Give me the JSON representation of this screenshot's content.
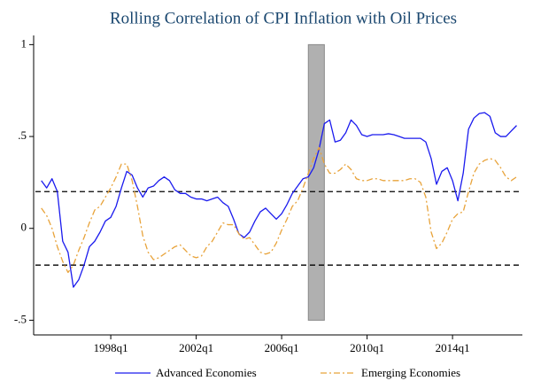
{
  "chart_data": {
    "type": "line",
    "title": "Rolling Correlation of CPI Inflation with Oil Prices",
    "x": [
      1994.75,
      1995,
      1995.25,
      1995.5,
      1995.75,
      1996,
      1996.25,
      1996.5,
      1996.75,
      1997,
      1997.25,
      1997.5,
      1997.75,
      1998,
      1998.25,
      1998.5,
      1998.75,
      1999,
      1999.25,
      1999.5,
      1999.75,
      2000,
      2000.25,
      2000.5,
      2000.75,
      2001,
      2001.25,
      2001.5,
      2001.75,
      2002,
      2002.25,
      2002.5,
      2002.75,
      2003,
      2003.25,
      2003.5,
      2003.75,
      2004,
      2004.25,
      2004.5,
      2004.75,
      2005,
      2005.25,
      2005.5,
      2005.75,
      2006,
      2006.25,
      2006.5,
      2006.75,
      2007,
      2007.25,
      2007.5,
      2007.75,
      2008,
      2008.25,
      2008.5,
      2008.75,
      2009,
      2009.25,
      2009.5,
      2009.75,
      2010,
      2010.25,
      2010.5,
      2010.75,
      2011,
      2011.25,
      2011.5,
      2011.75,
      2012,
      2012.25,
      2012.5,
      2012.75,
      2013,
      2013.25,
      2013.5,
      2013.75,
      2014,
      2014.25,
      2014.5,
      2014.75,
      2015,
      2015.25,
      2015.5,
      2015.75,
      2016,
      2016.25,
      2016.5,
      2016.75,
      2017
    ],
    "series": [
      {
        "name": "Advanced Economies",
        "color": "#1a1aee",
        "dash": "none",
        "values": [
          0.26,
          0.22,
          0.27,
          0.2,
          -0.07,
          -0.13,
          -0.32,
          -0.28,
          -0.2,
          -0.1,
          -0.07,
          -0.02,
          0.04,
          0.06,
          0.12,
          0.22,
          0.31,
          0.29,
          0.22,
          0.17,
          0.22,
          0.23,
          0.26,
          0.28,
          0.26,
          0.21,
          0.19,
          0.19,
          0.17,
          0.16,
          0.16,
          0.15,
          0.16,
          0.17,
          0.14,
          0.12,
          0.05,
          -0.03,
          -0.05,
          -0.02,
          0.04,
          0.09,
          0.11,
          0.08,
          0.05,
          0.08,
          0.13,
          0.19,
          0.23,
          0.27,
          0.28,
          0.33,
          0.43,
          0.57,
          0.59,
          0.47,
          0.48,
          0.52,
          0.59,
          0.56,
          0.51,
          0.5,
          0.51,
          0.51,
          0.51,
          0.515,
          0.51,
          0.5,
          0.49,
          0.49,
          0.49,
          0.49,
          0.47,
          0.38,
          0.24,
          0.31,
          0.33,
          0.26,
          0.15,
          0.3,
          0.54,
          0.6,
          0.625,
          0.63,
          0.61,
          0.52,
          0.5,
          0.5,
          0.53,
          0.56
        ]
      },
      {
        "name": "Emerging Economies",
        "color": "#e8a33a",
        "dash": "7 3 2 3",
        "values": [
          0.11,
          0.07,
          0.0,
          -0.1,
          -0.18,
          -0.24,
          -0.2,
          -0.12,
          -0.05,
          0.03,
          0.1,
          0.12,
          0.17,
          0.22,
          0.28,
          0.35,
          0.35,
          0.26,
          0.12,
          -0.04,
          -0.13,
          -0.17,
          -0.16,
          -0.14,
          -0.12,
          -0.1,
          -0.09,
          -0.12,
          -0.15,
          -0.16,
          -0.15,
          -0.1,
          -0.07,
          -0.02,
          0.03,
          0.02,
          0.02,
          -0.03,
          -0.06,
          -0.05,
          -0.09,
          -0.13,
          -0.14,
          -0.13,
          -0.08,
          -0.01,
          0.05,
          0.12,
          0.15,
          0.22,
          0.3,
          0.38,
          0.44,
          0.35,
          0.3,
          0.3,
          0.32,
          0.35,
          0.32,
          0.27,
          0.26,
          0.26,
          0.27,
          0.27,
          0.26,
          0.26,
          0.26,
          0.26,
          0.26,
          0.27,
          0.27,
          0.25,
          0.17,
          -0.02,
          -0.11,
          -0.08,
          -0.02,
          0.05,
          0.08,
          0.09,
          0.2,
          0.3,
          0.35,
          0.37,
          0.38,
          0.37,
          0.33,
          0.28,
          0.26,
          0.28
        ]
      }
    ],
    "xlim": [
      1994.39,
      2017.27
    ],
    "xticks": [
      {
        "value": 1998,
        "label": "1998q1"
      },
      {
        "value": 2002,
        "label": "2002q1"
      },
      {
        "value": 2006,
        "label": "2006q1"
      },
      {
        "value": 2010,
        "label": "2010q1"
      },
      {
        "value": 2014,
        "label": "2014q1"
      }
    ],
    "ylim": [
      -0.58,
      1.05
    ],
    "yticks": [
      {
        "value": -0.5,
        "label": "-.5"
      },
      0,
      {
        "value": 0.5,
        "label": ".5"
      },
      1
    ],
    "shaded_band": {
      "x": [
        2007.25,
        2008.0
      ],
      "y": [
        -0.5,
        1
      ],
      "color": "#b0b0b0"
    },
    "hlines": [
      0.2,
      -0.2
    ],
    "legend": "bottom"
  }
}
